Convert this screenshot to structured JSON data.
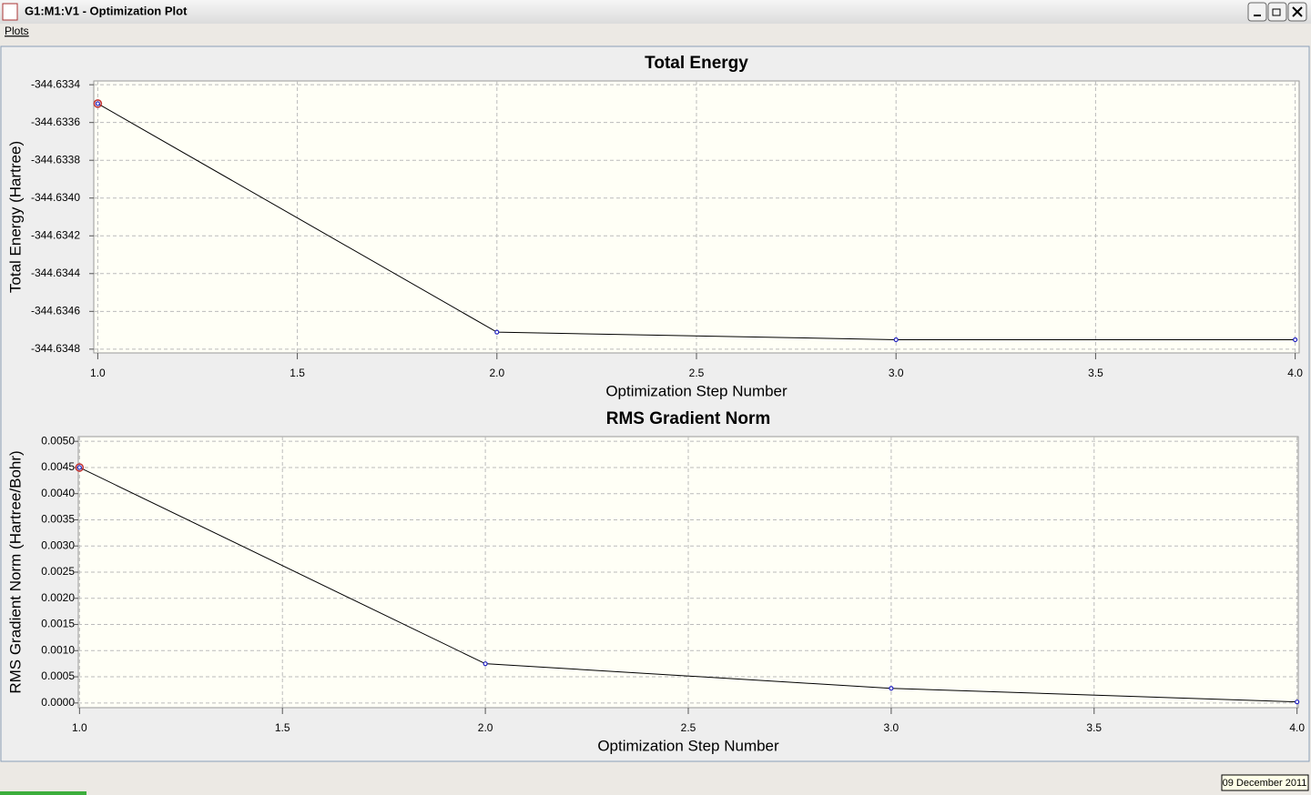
{
  "window": {
    "title": "G1:M1:V1 - Optimization Plot"
  },
  "menu": {
    "items": [
      "Plots"
    ]
  },
  "chart_data": [
    {
      "type": "line",
      "title": "Total Energy",
      "xlabel": "Optimization Step Number",
      "ylabel": "Total Energy (Hartree)",
      "x": [
        1,
        2,
        3,
        4
      ],
      "values": [
        -344.6335,
        -344.63471,
        -344.63475,
        -344.63475
      ],
      "color": "#000000",
      "marker_color": "#2020c0",
      "xlim": [
        0.99,
        4.01
      ],
      "ylim": [
        -344.63482,
        -344.63338
      ],
      "xticks": [
        {
          "value": 1,
          "label": "1.0"
        },
        1.5,
        {
          "value": 2,
          "label": "2.0"
        },
        2.5,
        {
          "value": 3,
          "label": "3.0"
        },
        3.5,
        {
          "value": 4,
          "label": "4.0"
        }
      ],
      "yticks": [
        -344.6334,
        -344.6336,
        -344.6338,
        {
          "value": -344.634,
          "label": "-344.6340"
        },
        -344.6342,
        -344.6344,
        -344.6346,
        -344.6348
      ],
      "grid": true
    },
    {
      "type": "line",
      "title": "RMS Gradient Norm",
      "xlabel": "Optimization Step Number",
      "ylabel": "RMS Gradient Norm (Hartree/Bohr)",
      "x": [
        1,
        2,
        3,
        4
      ],
      "values": [
        0.0045,
        0.00075,
        0.00028,
        2e-05
      ],
      "color": "#000000",
      "marker_color": "#2020c0",
      "xlim": [
        0.997,
        4.003
      ],
      "ylim": [
        -9e-05,
        0.00509
      ],
      "xticks": [
        {
          "value": 1,
          "label": "1.0"
        },
        1.5,
        {
          "value": 2,
          "label": "2.0"
        },
        2.5,
        {
          "value": 3,
          "label": "3.0"
        },
        3.5,
        {
          "value": 4,
          "label": "4.0"
        }
      ],
      "yticks": [
        {
          "value": 0,
          "label": "0.0000"
        },
        {
          "value": 0.0005,
          "label": "0.0005"
        },
        {
          "value": 0.001,
          "label": "0.0010"
        },
        {
          "value": 0.0015,
          "label": "0.0015"
        },
        {
          "value": 0.002,
          "label": "0.0020"
        },
        {
          "value": 0.0025,
          "label": "0.0025"
        },
        {
          "value": 0.003,
          "label": "0.0030"
        },
        {
          "value": 0.0035,
          "label": "0.0035"
        },
        {
          "value": 0.004,
          "label": "0.0040"
        },
        {
          "value": 0.0045,
          "label": "0.0045"
        },
        {
          "value": 0.005,
          "label": "0.0050"
        }
      ],
      "grid": true
    }
  ],
  "status": {
    "date": "09 December 2011"
  }
}
